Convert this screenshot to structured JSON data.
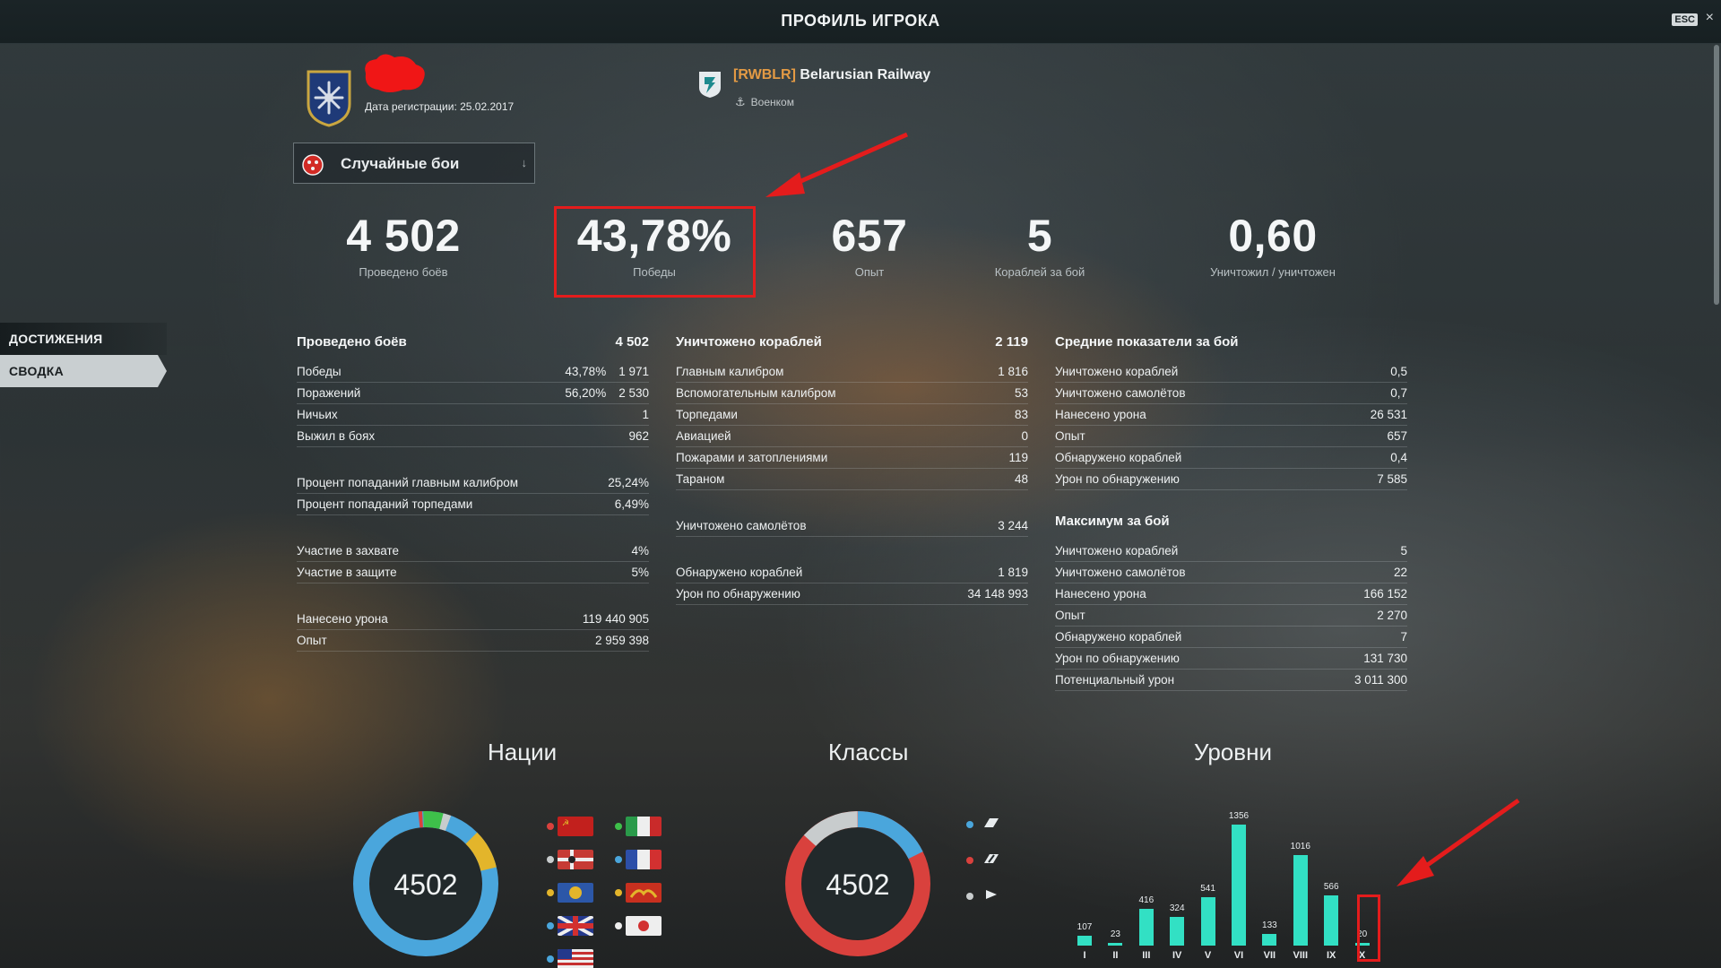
{
  "window": {
    "title": "ПРОФИЛЬ ИГРОКА",
    "esc_label": "ESC",
    "close": "×"
  },
  "nav": {
    "achievements": "ДОСТИЖЕНИЯ",
    "summary": "СВОДКА"
  },
  "profile": {
    "reg_date": "Дата регистрации: 25.02.2017",
    "clan_tag": "[RWBLR]",
    "clan_name": "Belarusian Railway",
    "clan_role": "Военком"
  },
  "mode_select": {
    "value": "Случайные бои"
  },
  "big_stats": [
    {
      "value": "4 502",
      "label": "Проведено боёв"
    },
    {
      "value": "43,78%",
      "label": "Победы"
    },
    {
      "value": "657",
      "label": "Опыт"
    },
    {
      "value": "5",
      "label": "Кораблей за бой"
    },
    {
      "value": "0,60",
      "label": "Уничтожил / уничтожен"
    }
  ],
  "battles": {
    "title": "Проведено боёв",
    "total": "4 502",
    "rows": [
      {
        "label": "Победы",
        "pct": "43,78%",
        "value": "1 971"
      },
      {
        "label": "Поражений",
        "pct": "56,20%",
        "value": "2 530"
      },
      {
        "label": "Ничьих",
        "value": "1"
      },
      {
        "label": "Выжил в боях",
        "value": "962"
      },
      {
        "label": "Процент попаданий главным калибром",
        "value": "25,24%"
      },
      {
        "label": "Процент попаданий торпедами",
        "value": "6,49%"
      },
      {
        "label": "Участие в захвате",
        "value": "4%"
      },
      {
        "label": "Участие в защите",
        "value": "5%"
      },
      {
        "label": "Нанесено урона",
        "value": "119 440 905"
      },
      {
        "label": "Опыт",
        "value": "2 959 398"
      }
    ]
  },
  "destroyed": {
    "title": "Уничтожено кораблей",
    "total": "2 119",
    "rows": [
      {
        "label": "Главным калибром",
        "value": "1 816"
      },
      {
        "label": "Вспомогательным калибром",
        "value": "53"
      },
      {
        "label": "Торпедами",
        "value": "83"
      },
      {
        "label": "Авиацией",
        "value": "0"
      },
      {
        "label": "Пожарами и затоплениями",
        "value": "119"
      },
      {
        "label": "Тараном",
        "value": "48"
      },
      {
        "label": "Уничтожено самолётов",
        "value": "3 244"
      },
      {
        "label": "Обнаружено кораблей",
        "value": "1 819"
      },
      {
        "label": "Урон по обнаружению",
        "value": "34 148 993"
      }
    ]
  },
  "average": {
    "title": "Средние показатели за бой",
    "rows": [
      {
        "label": "Уничтожено кораблей",
        "value": "0,5"
      },
      {
        "label": "Уничтожено самолётов",
        "value": "0,7"
      },
      {
        "label": "Нанесено урона",
        "value": "26 531"
      },
      {
        "label": "Опыт",
        "value": "657"
      },
      {
        "label": "Обнаружено кораблей",
        "value": "0,4"
      },
      {
        "label": "Урон по обнаружению",
        "value": "7 585"
      }
    ]
  },
  "maximum": {
    "title": "Максимум за бой",
    "rows": [
      {
        "label": "Уничтожено кораблей",
        "value": "5"
      },
      {
        "label": "Уничтожено самолётов",
        "value": "22"
      },
      {
        "label": "Нанесено урона",
        "value": "166 152"
      },
      {
        "label": "Опыт",
        "value": "2 270"
      },
      {
        "label": "Обнаружено кораблей",
        "value": "7"
      },
      {
        "label": "Урон по обнаружению",
        "value": "131 730"
      },
      {
        "label": "Потенциальный урон",
        "value": "3 011 300"
      }
    ]
  },
  "charts": {
    "nations_title": "Нации",
    "classes_title": "Классы",
    "tiers_title": "Уровни",
    "nations_total": "4502",
    "classes_total": "4502",
    "colors": {
      "blue": "#4aa6dc",
      "red": "#d9413d",
      "gray": "#c8cccd",
      "yellow": "#e3b52b",
      "green": "#3ec04a",
      "teal": "#32e0c4",
      "highlight": "#e41c1c"
    }
  },
  "chart_data": {
    "type": "bar",
    "categories": [
      "I",
      "II",
      "III",
      "IV",
      "V",
      "VI",
      "VII",
      "VIII",
      "IX",
      "X"
    ],
    "values": [
      107,
      23,
      416,
      324,
      541,
      1356,
      133,
      1016,
      566,
      20
    ],
    "title": "Уровни",
    "ylim": [
      0,
      1356
    ]
  }
}
